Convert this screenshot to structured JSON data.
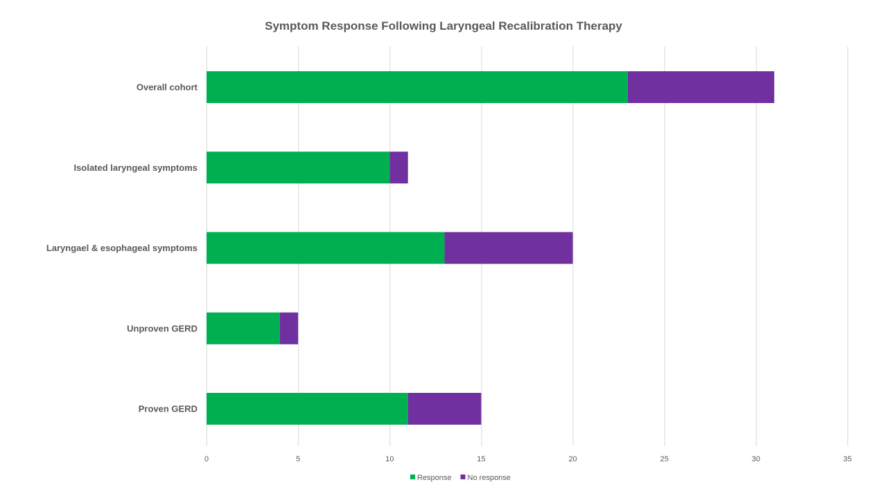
{
  "chart_data": {
    "type": "bar",
    "orientation": "horizontal",
    "stacked": true,
    "title": "Symptom Response Following Laryngeal Recalibration Therapy",
    "categories": [
      "Overall cohort",
      "Isolated laryngeal symptoms",
      "Laryngael & esophageal symptoms",
      "Unproven GERD",
      "Proven GERD"
    ],
    "series": [
      {
        "name": "Response",
        "color": "#00b050",
        "values": [
          23,
          10,
          13,
          4,
          11
        ]
      },
      {
        "name": "No response",
        "color": "#7030a0",
        "values": [
          8,
          1,
          7,
          1,
          4
        ]
      }
    ],
    "xlim": [
      0,
      35
    ],
    "xticks": [
      0,
      5,
      10,
      15,
      20,
      25,
      30,
      35
    ],
    "grid": true,
    "legend_position": "bottom"
  }
}
